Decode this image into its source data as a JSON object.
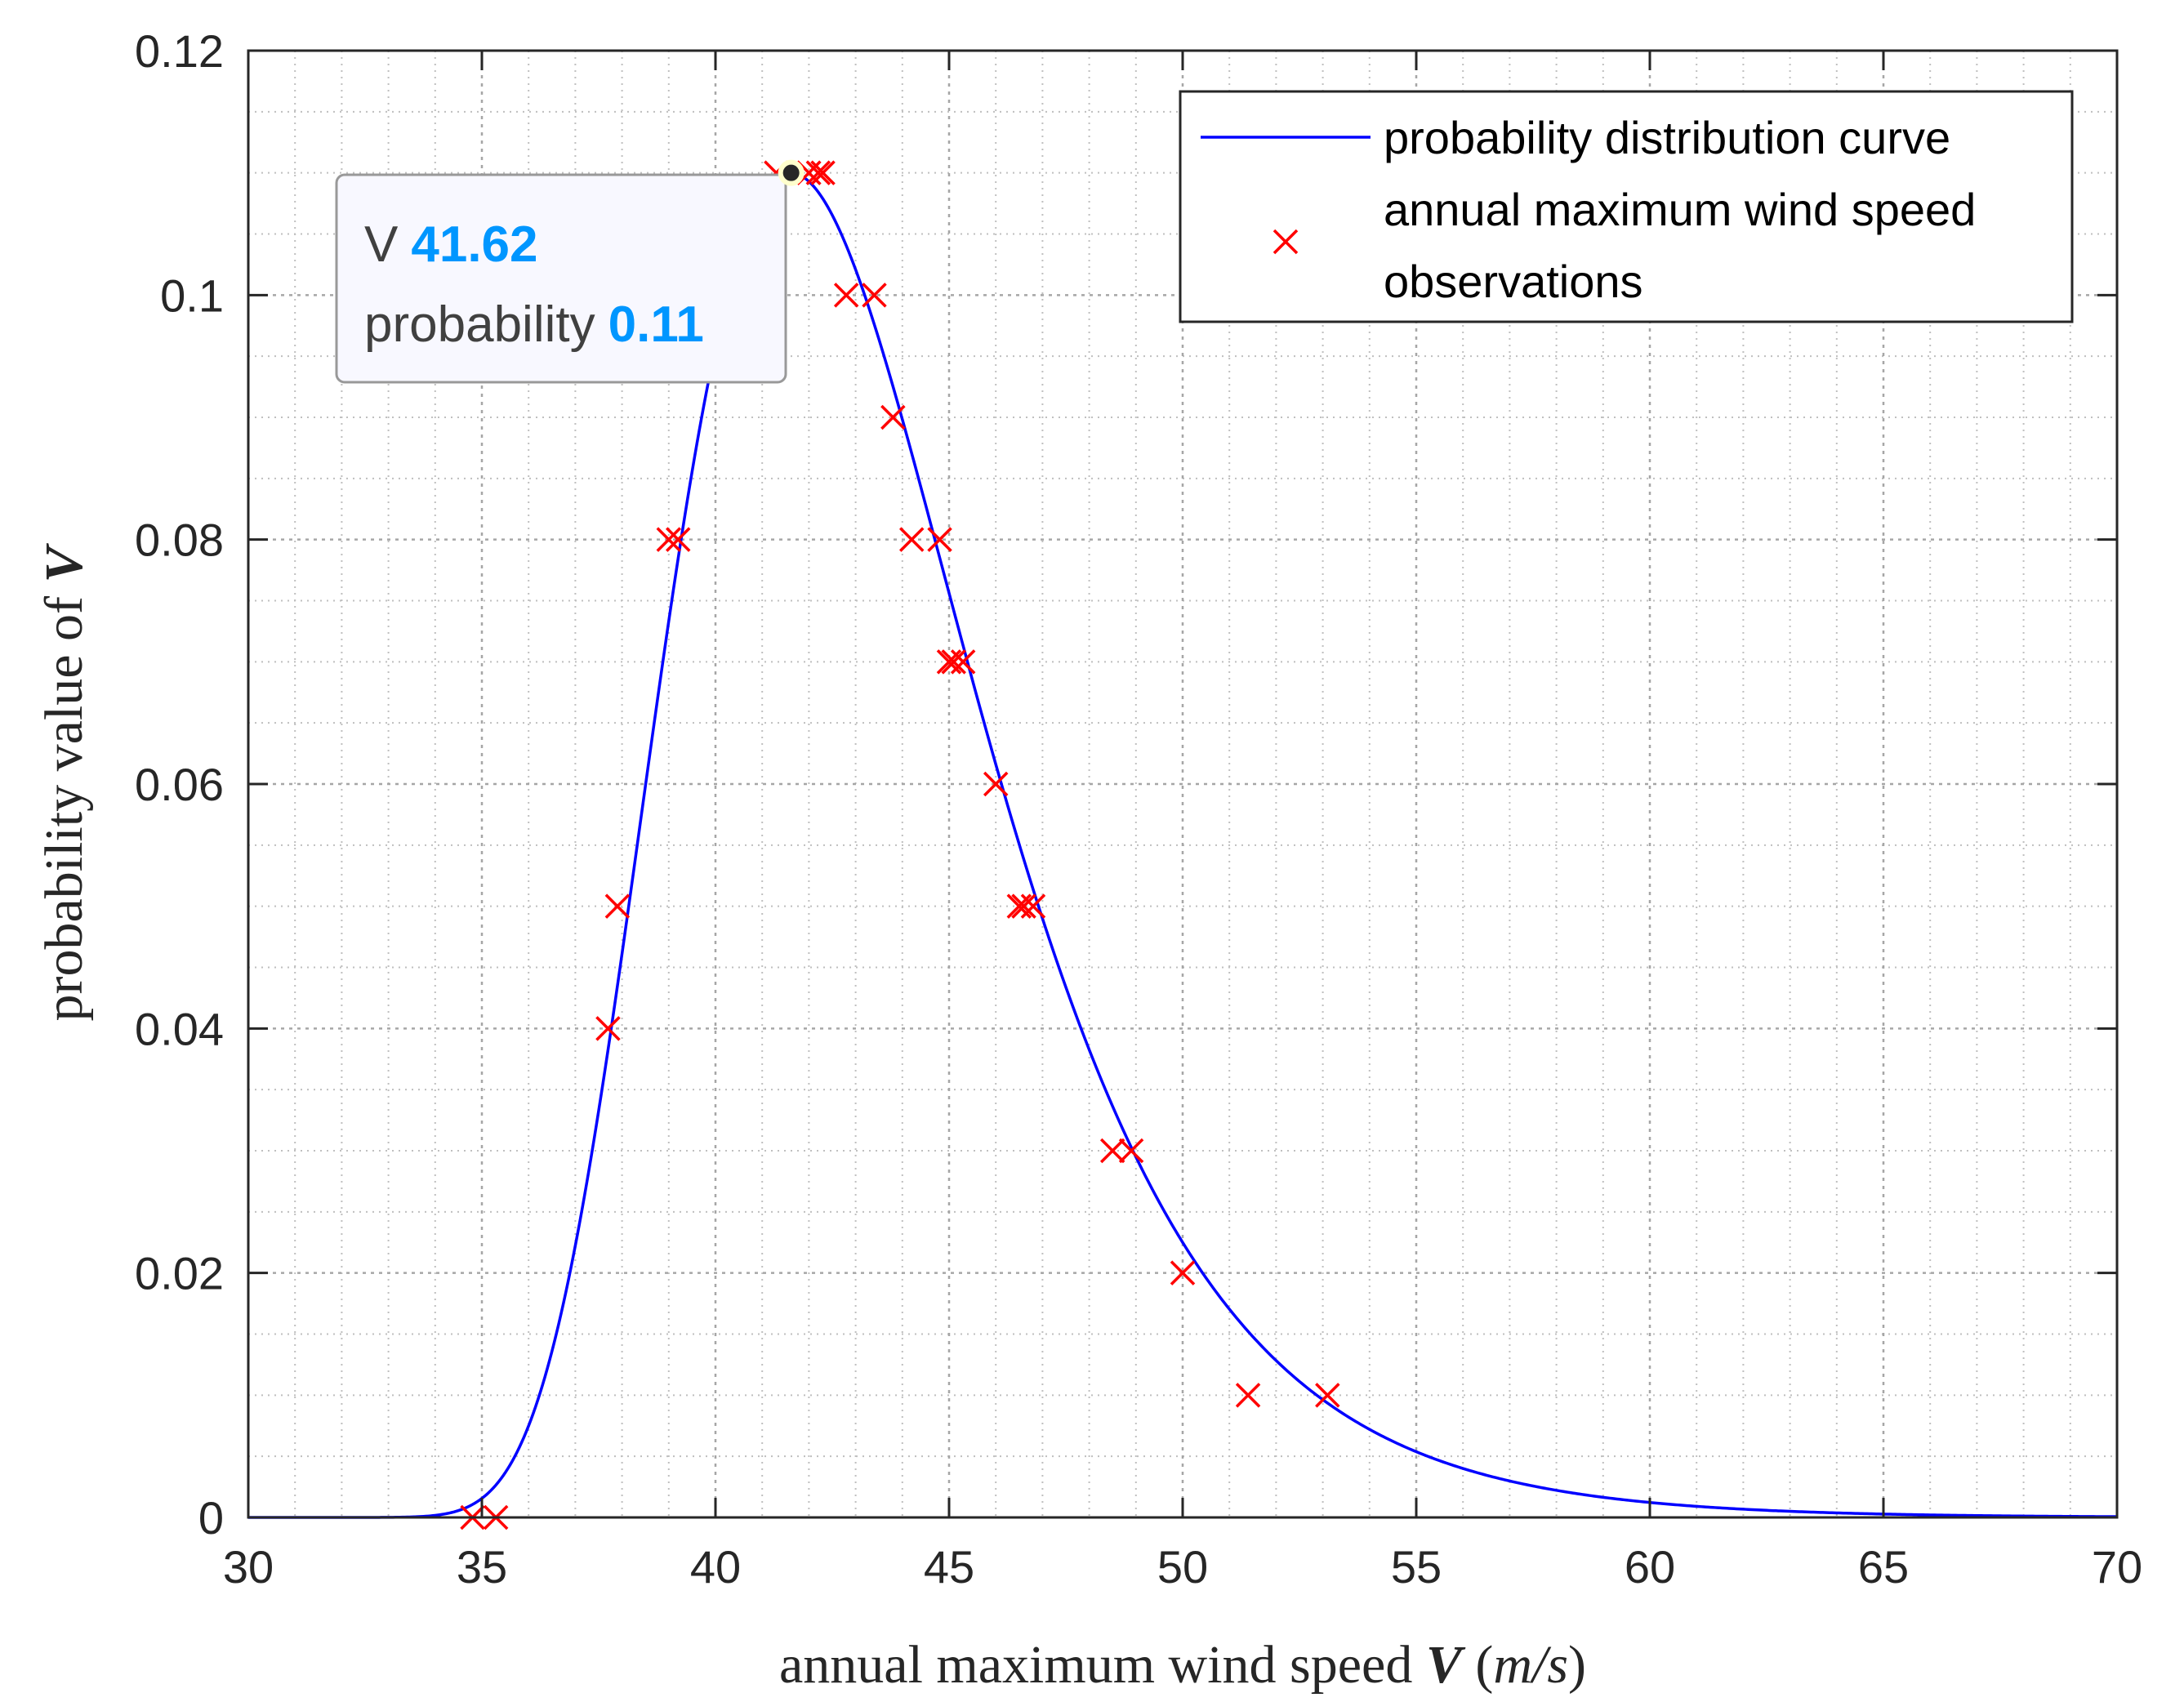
{
  "chart_data": {
    "type": "line",
    "title": "",
    "xlabel": "annual maximum wind speed V (m/s)",
    "xlabel_parts": [
      "annual maximum wind speed ",
      "V",
      " (",
      "m/s",
      ")"
    ],
    "ylabel": "probability value of V",
    "ylabel_parts": [
      "probability value of ",
      "V"
    ],
    "xlim": [
      30,
      70
    ],
    "ylim": [
      0,
      0.12
    ],
    "x_ticks": [
      30,
      35,
      40,
      45,
      50,
      55,
      60,
      65,
      70
    ],
    "x_tick_labels": [
      "30",
      "35",
      "40",
      "45",
      "50",
      "55",
      "60",
      "65",
      "70"
    ],
    "y_ticks": [
      0,
      0.02,
      0.04,
      0.06,
      0.08,
      0.1,
      0.12
    ],
    "y_tick_labels": [
      "0",
      "0.02",
      "0.04",
      "0.06",
      "0.08",
      "0.1",
      "0.12"
    ],
    "grid": true,
    "minor_grid": true,
    "legend_position": "top-right",
    "colors": {
      "curve": "#0000ff",
      "observations": "#ff0000",
      "axis": "#262626",
      "grid": "#bfbfbf",
      "tip_accent": "#0096ff",
      "tip_border": "#999999",
      "tip_bg": "#f8f8ff"
    },
    "series": [
      {
        "name": "probability distribution curve",
        "kind": "line",
        "distribution": "gumbel",
        "mode": 41.62,
        "scale": 3.345,
        "x_start": 30,
        "x_end": 70
      },
      {
        "name": "annual maximum wind speed observations",
        "kind": "scatter",
        "marker": "x",
        "x": [
          34.8,
          35.3,
          37.7,
          37.9,
          39.0,
          39.2,
          41.3,
          42.0,
          42.2,
          42.3,
          42.8,
          43.4,
          43.8,
          44.2,
          44.8,
          45.0,
          45.1,
          45.3,
          46.0,
          46.5,
          46.6,
          46.8,
          48.5,
          48.9,
          50.0,
          51.4,
          53.1
        ],
        "y": [
          0,
          0,
          0.04,
          0.05,
          0.08,
          0.08,
          0.11,
          0.11,
          0.11,
          0.11,
          0.1,
          0.1,
          0.09,
          0.08,
          0.08,
          0.07,
          0.07,
          0.07,
          0.06,
          0.05,
          0.05,
          0.05,
          0.03,
          0.03,
          0.02,
          0.01,
          0.01
        ]
      }
    ],
    "legend": {
      "curve_label": "probability distribution curve",
      "obs_label_line1": "annual maximum wind speed",
      "obs_label_line2": "observations"
    },
    "datatip": {
      "x_label": "V",
      "x_value": "41.62",
      "y_label": "probability",
      "y_value": "0.11",
      "x": 41.62,
      "y": 0.11
    }
  }
}
